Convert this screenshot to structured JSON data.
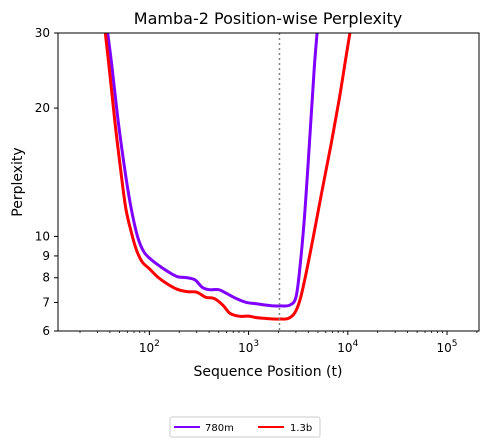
{
  "chart_data": {
    "type": "line",
    "title": "Mamba-2 Position-wise Perplexity",
    "xlabel": "Sequence Position (t)",
    "ylabel": "Perplexity",
    "x_scale": "log",
    "y_scale": "log",
    "xlim": [
      12,
      210000
    ],
    "ylim": [
      6,
      30
    ],
    "x_ticks": [
      {
        "value": 100,
        "base": "10",
        "exp": "2"
      },
      {
        "value": 1000,
        "base": "10",
        "exp": "3"
      },
      {
        "value": 10000,
        "base": "10",
        "exp": "4"
      },
      {
        "value": 100000,
        "base": "10",
        "exp": "5"
      }
    ],
    "y_ticks": [
      {
        "value": 6,
        "label": "6"
      },
      {
        "value": 7,
        "label": "7"
      },
      {
        "value": 8,
        "label": "8"
      },
      {
        "value": 9,
        "label": "9"
      },
      {
        "value": 10,
        "label": "10"
      },
      {
        "value": 20,
        "label": "20"
      },
      {
        "value": 30,
        "label": "30"
      }
    ],
    "vline": {
      "x": 2048,
      "style": "dotted",
      "color": "#808080"
    },
    "grid": false,
    "legend_placement": "bottom-center-outside",
    "series": [
      {
        "name": "780m",
        "color": "#7F00FF",
        "points": [
          [
            38,
            30
          ],
          [
            42,
            25
          ],
          [
            48,
            19
          ],
          [
            55,
            15
          ],
          [
            62,
            12.5
          ],
          [
            70,
            10.8
          ],
          [
            78,
            9.8
          ],
          [
            88,
            9.2
          ],
          [
            100,
            8.9
          ],
          [
            120,
            8.6
          ],
          [
            150,
            8.3
          ],
          [
            190,
            8.05
          ],
          [
            240,
            8.0
          ],
          [
            290,
            7.9
          ],
          [
            340,
            7.6
          ],
          [
            400,
            7.5
          ],
          [
            500,
            7.5
          ],
          [
            600,
            7.35
          ],
          [
            750,
            7.15
          ],
          [
            950,
            7.0
          ],
          [
            1200,
            6.95
          ],
          [
            1500,
            6.9
          ],
          [
            1800,
            6.87
          ],
          [
            2100,
            6.87
          ],
          [
            2600,
            6.9
          ],
          [
            3000,
            7.2
          ],
          [
            3300,
            8.5
          ],
          [
            3700,
            11.5
          ],
          [
            4200,
            18
          ],
          [
            4600,
            25
          ],
          [
            4900,
            30
          ]
        ]
      },
      {
        "name": "1.3b",
        "color": "#FF0000",
        "points": [
          [
            36,
            30
          ],
          [
            40,
            24
          ],
          [
            45,
            18.5
          ],
          [
            52,
            14
          ],
          [
            58,
            11.6
          ],
          [
            66,
            10.2
          ],
          [
            74,
            9.3
          ],
          [
            85,
            8.7
          ],
          [
            100,
            8.4
          ],
          [
            120,
            8.05
          ],
          [
            150,
            7.75
          ],
          [
            190,
            7.52
          ],
          [
            240,
            7.42
          ],
          [
            300,
            7.4
          ],
          [
            370,
            7.2
          ],
          [
            450,
            7.15
          ],
          [
            550,
            6.9
          ],
          [
            650,
            6.6
          ],
          [
            800,
            6.5
          ],
          [
            1000,
            6.5
          ],
          [
            1200,
            6.45
          ],
          [
            1500,
            6.42
          ],
          [
            1800,
            6.4
          ],
          [
            2100,
            6.4
          ],
          [
            2500,
            6.42
          ],
          [
            2900,
            6.6
          ],
          [
            3300,
            7.1
          ],
          [
            3800,
            8.2
          ],
          [
            4500,
            10.0
          ],
          [
            5500,
            12.8
          ],
          [
            6800,
            16.5
          ],
          [
            8200,
            21
          ],
          [
            9500,
            26
          ],
          [
            10500,
            30
          ]
        ]
      }
    ]
  }
}
